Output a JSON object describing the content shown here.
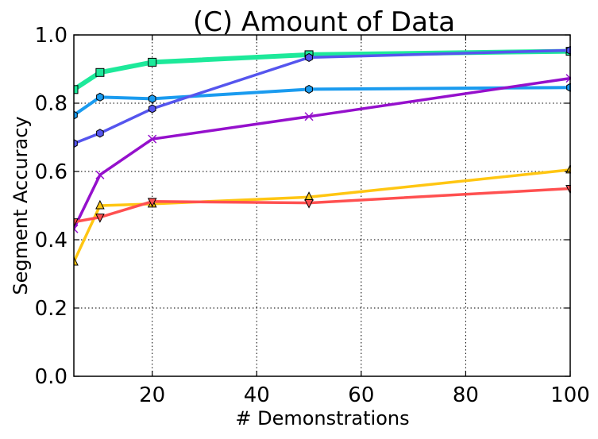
{
  "chart_data": {
    "type": "line",
    "title": "(C) Amount of Data",
    "xlabel": "# Demonstrations",
    "ylabel": "Segment Accuracy",
    "xlim": [
      5,
      100
    ],
    "ylim": [
      0.0,
      1.0
    ],
    "grid": true,
    "x_ticks": [
      20,
      40,
      60,
      80,
      100
    ],
    "x_tick_labels": [
      "20",
      "40",
      "60",
      "80",
      "100"
    ],
    "y_ticks": [
      0.0,
      0.2,
      0.4,
      0.6,
      0.8,
      1.0
    ],
    "y_tick_labels": [
      "0.0",
      "0.2",
      "0.4",
      "0.6",
      "0.8",
      "1.0"
    ],
    "x": [
      5,
      10,
      20,
      50,
      100
    ],
    "series": [
      {
        "values": [
          0.84,
          0.89,
          0.92,
          0.942,
          0.952
        ],
        "color": "#1de99a",
        "marker": "square",
        "width": 6
      },
      {
        "values": [
          0.765,
          0.818,
          0.813,
          0.841,
          0.846
        ],
        "color": "#1a9bef",
        "marker": "diamond",
        "width": 4
      },
      {
        "values": [
          0.682,
          0.712,
          0.784,
          0.934,
          0.955
        ],
        "color": "#5555ee",
        "marker": "hexagon",
        "width": 3.5
      },
      {
        "values": [
          0.432,
          0.59,
          0.695,
          0.761,
          0.873
        ],
        "color": "#9510cc",
        "marker": "x",
        "width": 3.5
      },
      {
        "values": [
          0.335,
          0.5,
          0.505,
          0.525,
          0.605
        ],
        "color": "#ffc612",
        "marker": "triangle-up",
        "width": 3.5
      },
      {
        "values": [
          0.452,
          0.466,
          0.512,
          0.508,
          0.55
        ],
        "color": "#ff5050",
        "marker": "triangle-down",
        "width": 3.5
      }
    ]
  }
}
